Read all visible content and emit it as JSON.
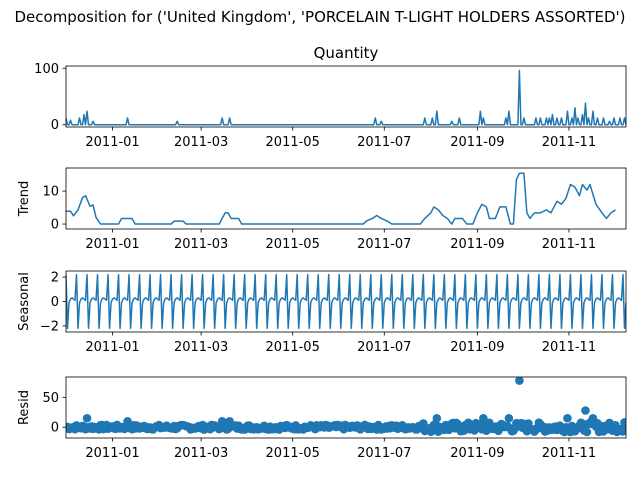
{
  "suptitle": "Decomposition for ('United Kingdom', 'PORCELAIN T-LIGHT HOLDERS ASSORTED')",
  "x_ticks": [
    "2011-01",
    "2011-03",
    "2011-05",
    "2011-07",
    "2011-09",
    "2011-11"
  ],
  "colors": {
    "series": "#1f77b4",
    "axis": "#000000"
  },
  "chart_data": [
    {
      "type": "line",
      "title": "Quantity",
      "ylabel": "",
      "xlim": [
        "2010-12-01",
        "2011-12-09"
      ],
      "ylim": [
        -4,
        104
      ],
      "yticks": [
        0,
        100
      ],
      "spikes": [
        {
          "x": "2010-12-01",
          "y": 12
        },
        {
          "x": "2010-12-04",
          "y": 8
        },
        {
          "x": "2010-12-10",
          "y": 12
        },
        {
          "x": "2010-12-13",
          "y": 18
        },
        {
          "x": "2010-12-15",
          "y": 24
        },
        {
          "x": "2010-12-19",
          "y": 6
        },
        {
          "x": "2011-01-11",
          "y": 12
        },
        {
          "x": "2011-02-13",
          "y": 6
        },
        {
          "x": "2011-03-15",
          "y": 12
        },
        {
          "x": "2011-03-20",
          "y": 12
        },
        {
          "x": "2011-06-25",
          "y": 12
        },
        {
          "x": "2011-06-29",
          "y": 6
        },
        {
          "x": "2011-07-28",
          "y": 12
        },
        {
          "x": "2011-08-02",
          "y": 12
        },
        {
          "x": "2011-08-05",
          "y": 24
        },
        {
          "x": "2011-08-15",
          "y": 6
        },
        {
          "x": "2011-08-20",
          "y": 12
        },
        {
          "x": "2011-09-03",
          "y": 24
        },
        {
          "x": "2011-09-05",
          "y": 12
        },
        {
          "x": "2011-09-20",
          "y": 12
        },
        {
          "x": "2011-09-22",
          "y": 24
        },
        {
          "x": "2011-09-29",
          "y": 96
        },
        {
          "x": "2011-10-02",
          "y": 12
        },
        {
          "x": "2011-10-10",
          "y": 12
        },
        {
          "x": "2011-10-13",
          "y": 12
        },
        {
          "x": "2011-10-17",
          "y": 12
        },
        {
          "x": "2011-10-19",
          "y": 12
        },
        {
          "x": "2011-10-21",
          "y": 18
        },
        {
          "x": "2011-10-24",
          "y": 12
        },
        {
          "x": "2011-10-27",
          "y": 12
        },
        {
          "x": "2011-10-31",
          "y": 24
        },
        {
          "x": "2011-11-03",
          "y": 12
        },
        {
          "x": "2011-11-05",
          "y": 30
        },
        {
          "x": "2011-11-07",
          "y": 12
        },
        {
          "x": "2011-11-10",
          "y": 18
        },
        {
          "x": "2011-11-12",
          "y": 38
        },
        {
          "x": "2011-11-14",
          "y": 12
        },
        {
          "x": "2011-11-17",
          "y": 24
        },
        {
          "x": "2011-11-20",
          "y": 12
        },
        {
          "x": "2011-11-24",
          "y": 12
        },
        {
          "x": "2011-11-28",
          "y": 6
        },
        {
          "x": "2011-12-01",
          "y": 12
        },
        {
          "x": "2011-12-05",
          "y": 12
        },
        {
          "x": "2011-12-08",
          "y": 12
        }
      ]
    },
    {
      "type": "line",
      "title": "",
      "ylabel": "Trend",
      "ylim": [
        -1.5,
        17
      ],
      "yticks": [
        0,
        10
      ],
      "points": [
        [
          "2010-12-01",
          3.9
        ],
        [
          "2010-12-04",
          3.9
        ],
        [
          "2010-12-06",
          2.5
        ],
        [
          "2010-12-09",
          4.3
        ],
        [
          "2010-12-12",
          8.0
        ],
        [
          "2010-12-14",
          8.6
        ],
        [
          "2010-12-17",
          5.4
        ],
        [
          "2010-12-19",
          5.8
        ],
        [
          "2010-12-21",
          2.0
        ],
        [
          "2010-12-24",
          0.0
        ],
        [
          "2011-01-05",
          0.0
        ],
        [
          "2011-01-07",
          1.7
        ],
        [
          "2011-01-14",
          1.7
        ],
        [
          "2011-01-16",
          0.0
        ],
        [
          "2011-02-09",
          0.0
        ],
        [
          "2011-02-11",
          0.9
        ],
        [
          "2011-02-17",
          0.9
        ],
        [
          "2011-02-19",
          0.0
        ],
        [
          "2011-03-13",
          0.0
        ],
        [
          "2011-03-15",
          1.7
        ],
        [
          "2011-03-17",
          3.4
        ],
        [
          "2011-03-19",
          3.4
        ],
        [
          "2011-03-21",
          1.7
        ],
        [
          "2011-03-26",
          1.7
        ],
        [
          "2011-03-28",
          0.0
        ],
        [
          "2011-06-17",
          0.0
        ],
        [
          "2011-06-19",
          0.9
        ],
        [
          "2011-06-23",
          1.7
        ],
        [
          "2011-06-26",
          2.6
        ],
        [
          "2011-06-29",
          1.7
        ],
        [
          "2011-07-03",
          0.9
        ],
        [
          "2011-07-06",
          0.0
        ],
        [
          "2011-07-25",
          0.0
        ],
        [
          "2011-07-28",
          1.7
        ],
        [
          "2011-08-01",
          3.4
        ],
        [
          "2011-08-03",
          5.2
        ],
        [
          "2011-08-06",
          4.3
        ],
        [
          "2011-08-09",
          2.6
        ],
        [
          "2011-08-12",
          1.7
        ],
        [
          "2011-08-15",
          0.0
        ],
        [
          "2011-08-17",
          1.7
        ],
        [
          "2011-08-22",
          1.7
        ],
        [
          "2011-08-25",
          0.0
        ],
        [
          "2011-08-29",
          0.0
        ],
        [
          "2011-09-01",
          3.4
        ],
        [
          "2011-09-04",
          6.0
        ],
        [
          "2011-09-07",
          5.2
        ],
        [
          "2011-09-09",
          1.7
        ],
        [
          "2011-09-13",
          1.7
        ],
        [
          "2011-09-16",
          5.2
        ],
        [
          "2011-09-20",
          5.2
        ],
        [
          "2011-09-23",
          0.0
        ],
        [
          "2011-09-25",
          0.0
        ],
        [
          "2011-09-27",
          13.5
        ],
        [
          "2011-09-29",
          15.4
        ],
        [
          "2011-10-02",
          15.4
        ],
        [
          "2011-10-04",
          3.4
        ],
        [
          "2011-10-06",
          1.7
        ],
        [
          "2011-10-09",
          3.4
        ],
        [
          "2011-10-13",
          3.4
        ],
        [
          "2011-10-17",
          4.3
        ],
        [
          "2011-10-20",
          3.4
        ],
        [
          "2011-10-24",
          6.9
        ],
        [
          "2011-10-27",
          6.0
        ],
        [
          "2011-10-30",
          7.8
        ],
        [
          "2011-11-02",
          12.0
        ],
        [
          "2011-11-05",
          11.2
        ],
        [
          "2011-11-08",
          8.6
        ],
        [
          "2011-11-10",
          12.0
        ],
        [
          "2011-11-13",
          10.3
        ],
        [
          "2011-11-15",
          12.0
        ],
        [
          "2011-11-19",
          6.0
        ],
        [
          "2011-11-23",
          3.4
        ],
        [
          "2011-11-26",
          1.7
        ],
        [
          "2011-11-29",
          3.4
        ],
        [
          "2011-12-02",
          4.3
        ]
      ]
    },
    {
      "type": "line",
      "title": "",
      "ylabel": "Seasonal",
      "ylim": [
        -2.5,
        2.5
      ],
      "yticks": [
        -2,
        0,
        2
      ],
      "period_days": 7,
      "weekly_pattern": [
        2.2,
        -2.2,
        -0.1,
        0.2,
        0.3,
        0.2,
        0.1
      ]
    },
    {
      "type": "scatter",
      "title": "",
      "ylabel": "Resid",
      "ylim": [
        -18,
        84
      ],
      "yticks": [
        0,
        50
      ],
      "outliers": [
        {
          "x": "2010-12-15",
          "y": 15
        },
        {
          "x": "2011-01-11",
          "y": 10
        },
        {
          "x": "2011-03-15",
          "y": 10
        },
        {
          "x": "2011-03-20",
          "y": 10
        },
        {
          "x": "2011-08-05",
          "y": 15
        },
        {
          "x": "2011-09-05",
          "y": 15
        },
        {
          "x": "2011-09-22",
          "y": 15
        },
        {
          "x": "2011-09-29",
          "y": 78
        },
        {
          "x": "2011-10-31",
          "y": 15
        },
        {
          "x": "2011-11-12",
          "y": 28
        },
        {
          "x": "2011-11-17",
          "y": 15
        },
        {
          "x": "2011-12-08",
          "y": 8
        }
      ]
    }
  ]
}
